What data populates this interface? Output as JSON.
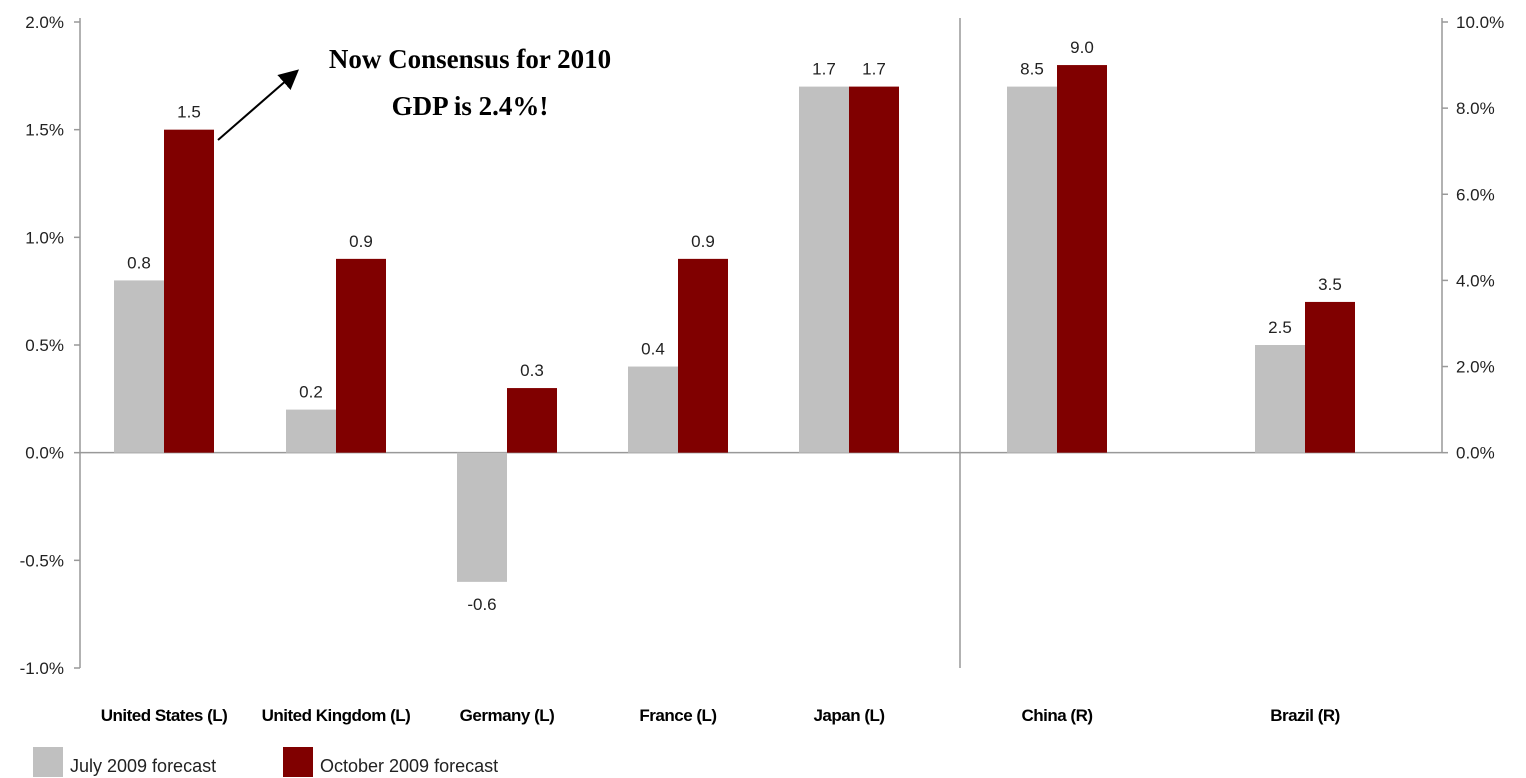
{
  "chart_data": {
    "type": "bar",
    "categories": [
      "United States (L)",
      "United Kingdom (L)",
      "Germany (L)",
      "France (L)",
      "Japan (L)",
      "China (R)",
      "Brazil (R)"
    ],
    "axis_assignment": [
      "left",
      "left",
      "left",
      "left",
      "left",
      "right",
      "right"
    ],
    "series": [
      {
        "name": "July 2009 forecast",
        "color": "#c0c0c0",
        "values": [
          0.8,
          0.2,
          -0.6,
          0.4,
          1.7,
          8.5,
          2.5
        ],
        "labels": [
          "0.8",
          "0.2",
          "-0.6",
          "0.4",
          "1.7",
          "8.5",
          "2.5"
        ]
      },
      {
        "name": "October 2009 forecast",
        "color": "#800000",
        "values": [
          1.5,
          0.9,
          0.3,
          0.9,
          1.7,
          9.0,
          3.5
        ],
        "labels": [
          "1.5",
          "0.9",
          "0.3",
          "0.9",
          "1.7",
          "9.0",
          "3.5"
        ]
      }
    ],
    "y_left": {
      "ylim": [
        -1.0,
        2.0
      ],
      "ticks": [
        "2.0%",
        "1.5%",
        "1.0%",
        "0.5%",
        "0.0%",
        "-0.5%",
        "-1.0%"
      ],
      "tick_values": [
        2.0,
        1.5,
        1.0,
        0.5,
        0.0,
        -0.5,
        -1.0
      ]
    },
    "y_right": {
      "ylim": [
        -10.0,
        10.0
      ],
      "ticks": [
        "10.0%",
        "8.0%",
        "6.0%",
        "4.0%",
        "2.0%",
        "0.0%"
      ],
      "tick_values": [
        10.0,
        8.0,
        6.0,
        4.0,
        2.0,
        0.0
      ]
    },
    "annotation": {
      "line1": "Now Consensus for 2010",
      "line2": "GDP is 2.4%!"
    },
    "legend_placement": "bottom-left",
    "grid": false
  }
}
